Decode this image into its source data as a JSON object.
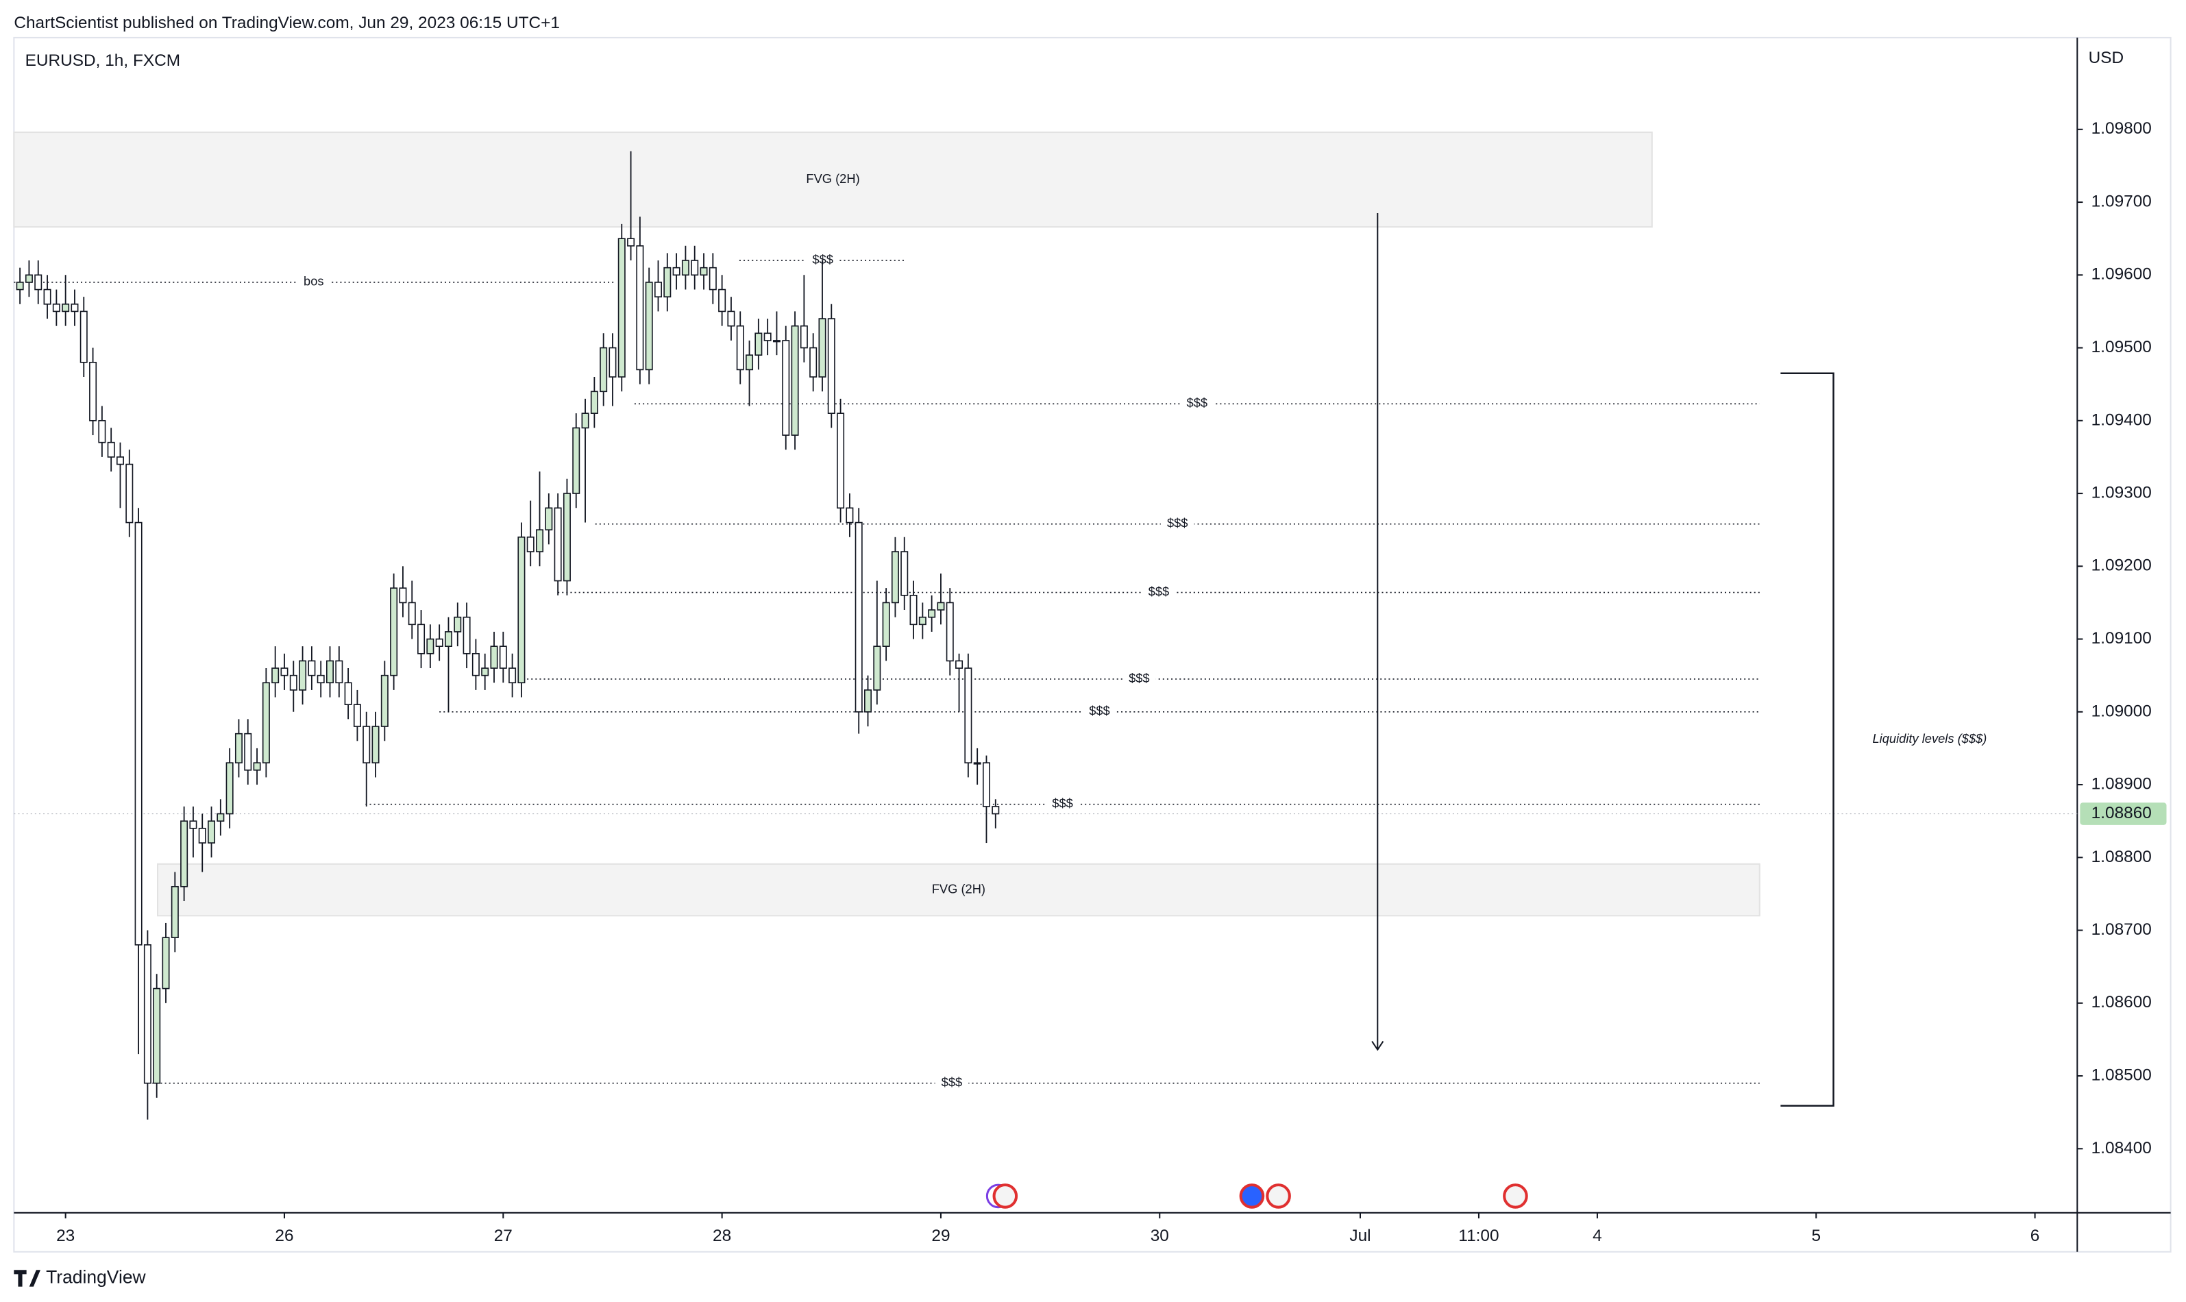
{
  "header": {
    "text": "ChartScientist published on TradingView.com, Jun 29, 2023 06:15 UTC+1"
  },
  "footer": {
    "brand": "TradingView"
  },
  "chart_data": {
    "type": "candlestick",
    "title": "EURUSD, 1h, FXCM",
    "currency": "USD",
    "up_color": "#cfe9cf",
    "down_color": "#ffffff",
    "wick_color": "#131722",
    "xlim": [
      -5.66,
      220.64
    ],
    "ylim": [
      1.08312,
      1.09926
    ],
    "xticks": [
      {
        "value": 0,
        "label": "23"
      },
      {
        "value": 24,
        "label": "26"
      },
      {
        "value": 48,
        "label": "27"
      },
      {
        "value": 72,
        "label": "28"
      },
      {
        "value": 96,
        "label": "29"
      },
      {
        "value": 120,
        "label": "30"
      },
      {
        "value": 142,
        "label": "Jul"
      },
      {
        "value": 155,
        "label": "11:00"
      },
      {
        "value": 168,
        "label": "4"
      },
      {
        "value": 192,
        "label": "5"
      },
      {
        "value": 216,
        "label": "6"
      }
    ],
    "yticks": [
      {
        "value": 1.098,
        "label": "1.09800"
      },
      {
        "value": 1.097,
        "label": "1.09700"
      },
      {
        "value": 1.096,
        "label": "1.09600"
      },
      {
        "value": 1.095,
        "label": "1.09500"
      },
      {
        "value": 1.094,
        "label": "1.09400"
      },
      {
        "value": 1.093,
        "label": "1.09300"
      },
      {
        "value": 1.092,
        "label": "1.09200"
      },
      {
        "value": 1.091,
        "label": "1.09100"
      },
      {
        "value": 1.09,
        "label": "1.09000"
      },
      {
        "value": 1.089,
        "label": "1.08900"
      },
      {
        "value": 1.088,
        "label": "1.08800"
      },
      {
        "value": 1.087,
        "label": "1.08700"
      },
      {
        "value": 1.086,
        "label": "1.08600"
      },
      {
        "value": 1.085,
        "label": "1.08500"
      },
      {
        "value": 1.084,
        "label": "1.08400"
      }
    ],
    "last_price": {
      "value": 1.0886,
      "label": "1.08860",
      "color": "#b5dfb7"
    },
    "x": [
      -5,
      -4,
      -3,
      -2,
      -1,
      0,
      1,
      2,
      3,
      4,
      5,
      6,
      7,
      8,
      9,
      10,
      11,
      12,
      13,
      14,
      15,
      16,
      17,
      18,
      19,
      20,
      21,
      22,
      23,
      24,
      25,
      26,
      27,
      28,
      29,
      30,
      31,
      32,
      33,
      34,
      35,
      36,
      37,
      38,
      39,
      40,
      41,
      42,
      43,
      44,
      45,
      46,
      47,
      48,
      49,
      50,
      51,
      52,
      53,
      54,
      55,
      56,
      57,
      58,
      59,
      60,
      61,
      62,
      63,
      64,
      65,
      66,
      67,
      68,
      69,
      70,
      71,
      72,
      73,
      74,
      75,
      76,
      77,
      78,
      79,
      80,
      81,
      82,
      83,
      84,
      85,
      86,
      87,
      88,
      89,
      90,
      91,
      92,
      93,
      94,
      95,
      96,
      97,
      98,
      99,
      100,
      101,
      102
    ],
    "ohlc": [
      [
        1.0958,
        1.0961,
        1.0956,
        1.0959
      ],
      [
        1.0959,
        1.0962,
        1.0957,
        1.096
      ],
      [
        1.096,
        1.0962,
        1.0956,
        1.0958
      ],
      [
        1.0958,
        1.096,
        1.0954,
        1.0956
      ],
      [
        1.0956,
        1.0958,
        1.0953,
        1.0955
      ],
      [
        1.0955,
        1.096,
        1.0953,
        1.0956
      ],
      [
        1.0956,
        1.0958,
        1.0953,
        1.0955
      ],
      [
        1.0955,
        1.0957,
        1.0946,
        1.0948
      ],
      [
        1.0948,
        1.095,
        1.0938,
        1.094
      ],
      [
        1.094,
        1.0942,
        1.0935,
        1.0937
      ],
      [
        1.0937,
        1.0939,
        1.0933,
        1.0935
      ],
      [
        1.0935,
        1.0937,
        1.0928,
        1.0934
      ],
      [
        1.0934,
        1.0936,
        1.0924,
        1.0926
      ],
      [
        1.0926,
        1.0928,
        1.0853,
        1.0868
      ],
      [
        1.0868,
        1.087,
        1.0844,
        1.0849
      ],
      [
        1.0849,
        1.0864,
        1.0847,
        1.0862
      ],
      [
        1.0862,
        1.0871,
        1.086,
        1.0869
      ],
      [
        1.0869,
        1.0878,
        1.0867,
        1.0876
      ],
      [
        1.0876,
        1.0887,
        1.0874,
        1.0885
      ],
      [
        1.0885,
        1.0887,
        1.088,
        1.0884
      ],
      [
        1.0884,
        1.0886,
        1.0878,
        1.0882
      ],
      [
        1.0882,
        1.0887,
        1.088,
        1.0885
      ],
      [
        1.0885,
        1.0888,
        1.0883,
        1.0886
      ],
      [
        1.0886,
        1.0895,
        1.0884,
        1.0893
      ],
      [
        1.0893,
        1.0899,
        1.0891,
        1.0897
      ],
      [
        1.0897,
        1.0899,
        1.089,
        1.0892
      ],
      [
        1.0892,
        1.0895,
        1.089,
        1.0893
      ],
      [
        1.0893,
        1.0906,
        1.0891,
        1.0904
      ],
      [
        1.0904,
        1.0909,
        1.0902,
        1.0906
      ],
      [
        1.0906,
        1.0908,
        1.0903,
        1.0905
      ],
      [
        1.0905,
        1.0907,
        1.09,
        1.0903
      ],
      [
        1.0903,
        1.0909,
        1.0901,
        1.0907
      ],
      [
        1.0907,
        1.0909,
        1.0903,
        1.0905
      ],
      [
        1.0905,
        1.0907,
        1.0902,
        1.0904
      ],
      [
        1.0904,
        1.0909,
        1.0902,
        1.0907
      ],
      [
        1.0907,
        1.0909,
        1.0902,
        1.0904
      ],
      [
        1.0904,
        1.0906,
        1.0899,
        1.0901
      ],
      [
        1.0901,
        1.0903,
        1.0896,
        1.0898
      ],
      [
        1.0898,
        1.09,
        1.0887,
        1.0893
      ],
      [
        1.0893,
        1.09,
        1.0891,
        1.0898
      ],
      [
        1.0898,
        1.0907,
        1.0896,
        1.0905
      ],
      [
        1.0905,
        1.0919,
        1.0903,
        1.0917
      ],
      [
        1.0917,
        1.092,
        1.0913,
        1.0915
      ],
      [
        1.0915,
        1.0918,
        1.091,
        1.0912
      ],
      [
        1.0912,
        1.0914,
        1.0906,
        1.0908
      ],
      [
        1.0908,
        1.0912,
        1.0906,
        1.091
      ],
      [
        1.091,
        1.0912,
        1.0907,
        1.0909
      ],
      [
        1.0909,
        1.0913,
        1.09,
        1.0911
      ],
      [
        1.0911,
        1.0915,
        1.0909,
        1.0913
      ],
      [
        1.0913,
        1.0915,
        1.0906,
        1.0908
      ],
      [
        1.0908,
        1.091,
        1.0903,
        1.0905
      ],
      [
        1.0905,
        1.0908,
        1.0903,
        1.0906
      ],
      [
        1.0906,
        1.0911,
        1.0904,
        1.0909
      ],
      [
        1.0909,
        1.0911,
        1.0904,
        1.0906
      ],
      [
        1.0906,
        1.0908,
        1.0902,
        1.0904
      ],
      [
        1.0904,
        1.0926,
        1.0902,
        1.0924
      ],
      [
        1.0924,
        1.0929,
        1.092,
        1.0922
      ],
      [
        1.0922,
        1.0933,
        1.092,
        1.0925
      ],
      [
        1.0925,
        1.093,
        1.0923,
        1.0928
      ],
      [
        1.0928,
        1.093,
        1.0916,
        1.0918
      ],
      [
        1.0918,
        1.0932,
        1.0916,
        1.093
      ],
      [
        1.093,
        1.0941,
        1.0928,
        1.0939
      ],
      [
        1.0939,
        1.0943,
        1.0926,
        1.0941
      ],
      [
        1.0941,
        1.0946,
        1.0939,
        1.0944
      ],
      [
        1.0944,
        1.0952,
        1.0942,
        1.095
      ],
      [
        1.095,
        1.0952,
        1.0942,
        1.0946
      ],
      [
        1.0946,
        1.0967,
        1.0944,
        1.0965
      ],
      [
        1.0965,
        1.0977,
        1.0962,
        1.0964
      ],
      [
        1.0964,
        1.0968,
        1.0945,
        1.0947
      ],
      [
        1.0947,
        1.0961,
        1.0945,
        1.0959
      ],
      [
        1.0959,
        1.0962,
        1.0955,
        1.0957
      ],
      [
        1.0957,
        1.0963,
        1.0955,
        1.0961
      ],
      [
        1.0961,
        1.0963,
        1.0958,
        1.096
      ],
      [
        1.096,
        1.0964,
        1.0958,
        1.0962
      ],
      [
        1.0962,
        1.0964,
        1.0958,
        1.096
      ],
      [
        1.096,
        1.0963,
        1.0958,
        1.0961
      ],
      [
        1.0961,
        1.0963,
        1.0956,
        1.0958
      ],
      [
        1.0958,
        1.096,
        1.0953,
        1.0955
      ],
      [
        1.0955,
        1.0957,
        1.0951,
        1.0953
      ],
      [
        1.0953,
        1.0955,
        1.0945,
        1.0947
      ],
      [
        1.0947,
        1.0951,
        1.0942,
        1.0949
      ],
      [
        1.0949,
        1.0954,
        1.0947,
        1.0952
      ],
      [
        1.0952,
        1.0954,
        1.0949,
        1.0951
      ],
      [
        1.0951,
        1.0955,
        1.0949,
        1.0951
      ],
      [
        1.0951,
        1.0953,
        1.0936,
        1.0938
      ],
      [
        1.0938,
        1.0955,
        1.0936,
        1.0953
      ],
      [
        1.0953,
        1.096,
        1.0948,
        1.095
      ],
      [
        1.095,
        1.0952,
        1.0944,
        1.0946
      ],
      [
        1.0946,
        1.0962,
        1.0944,
        1.0954
      ],
      [
        1.0954,
        1.0956,
        1.0939,
        1.0941
      ],
      [
        1.0941,
        1.0943,
        1.0926,
        1.0928
      ],
      [
        1.0928,
        1.093,
        1.0924,
        1.0926
      ],
      [
        1.0926,
        1.0928,
        1.0897,
        1.09
      ],
      [
        1.09,
        1.0905,
        1.0898,
        1.0903
      ],
      [
        1.0903,
        1.0918,
        1.0901,
        1.0909
      ],
      [
        1.0909,
        1.0917,
        1.0907,
        1.0915
      ],
      [
        1.0915,
        1.0924,
        1.0913,
        1.0922
      ],
      [
        1.0922,
        1.0924,
        1.0914,
        1.0916
      ],
      [
        1.0916,
        1.0918,
        1.091,
        1.0912
      ],
      [
        1.0912,
        1.0915,
        1.091,
        1.0913
      ],
      [
        1.0913,
        1.0916,
        1.0911,
        1.0914
      ],
      [
        1.0914,
        1.0919,
        1.0912,
        1.0915
      ],
      [
        1.0915,
        1.0917,
        1.0905,
        1.0907
      ],
      [
        1.0907,
        1.0908,
        1.09,
        1.0906
      ],
      [
        1.0906,
        1.0908,
        1.0891,
        1.0893
      ],
      [
        1.0893,
        1.0895,
        1.089,
        1.0893
      ],
      [
        1.0893,
        1.0894,
        1.0882,
        1.0887
      ],
      [
        1.0887,
        1.0888,
        1.0884,
        1.0886
      ]
    ],
    "zones": [
      {
        "label": "FVG (2H)",
        "top": 1.09796,
        "bottom": 1.09666,
        "x": [
          -5.66,
          174
        ]
      },
      {
        "label": "FVG (2H)",
        "top": 1.08791,
        "bottom": 1.0872,
        "x": [
          10.1,
          185.8
        ]
      }
    ],
    "levels": [
      {
        "label": "bos",
        "price": 1.0959,
        "x": [
          -5.66,
          60.1
        ]
      },
      {
        "label": "$$$",
        "price": 1.0962,
        "x": [
          73.9,
          92.2
        ]
      },
      {
        "label": "$$$",
        "price": 1.09423,
        "x": [
          62.4,
          185.8
        ]
      },
      {
        "label": "$$$",
        "price": 1.09258,
        "x": [
          58.1,
          185.8
        ]
      },
      {
        "label": "$$$",
        "price": 1.09164,
        "x": [
          54,
          185.8
        ]
      },
      {
        "label": "$$$",
        "price": 1.09045,
        "x": [
          49.7,
          185.8
        ]
      },
      {
        "label": "$$$",
        "price": 1.09,
        "x": [
          41,
          185.8
        ]
      },
      {
        "label": "$$$",
        "price": 1.08873,
        "x": [
          32.9,
          185.8
        ]
      },
      {
        "label": "$$$",
        "price": 1.0849,
        "x": [
          8.6,
          185.8
        ]
      }
    ],
    "arrow": {
      "x": 143.9,
      "from": 1.09685,
      "to": 1.08536
    },
    "bracket": {
      "label": "Liquidity levels ($$$)",
      "x": [
        188.1,
        193.9
      ],
      "top": 1.09465,
      "bottom": 1.08459
    }
  }
}
